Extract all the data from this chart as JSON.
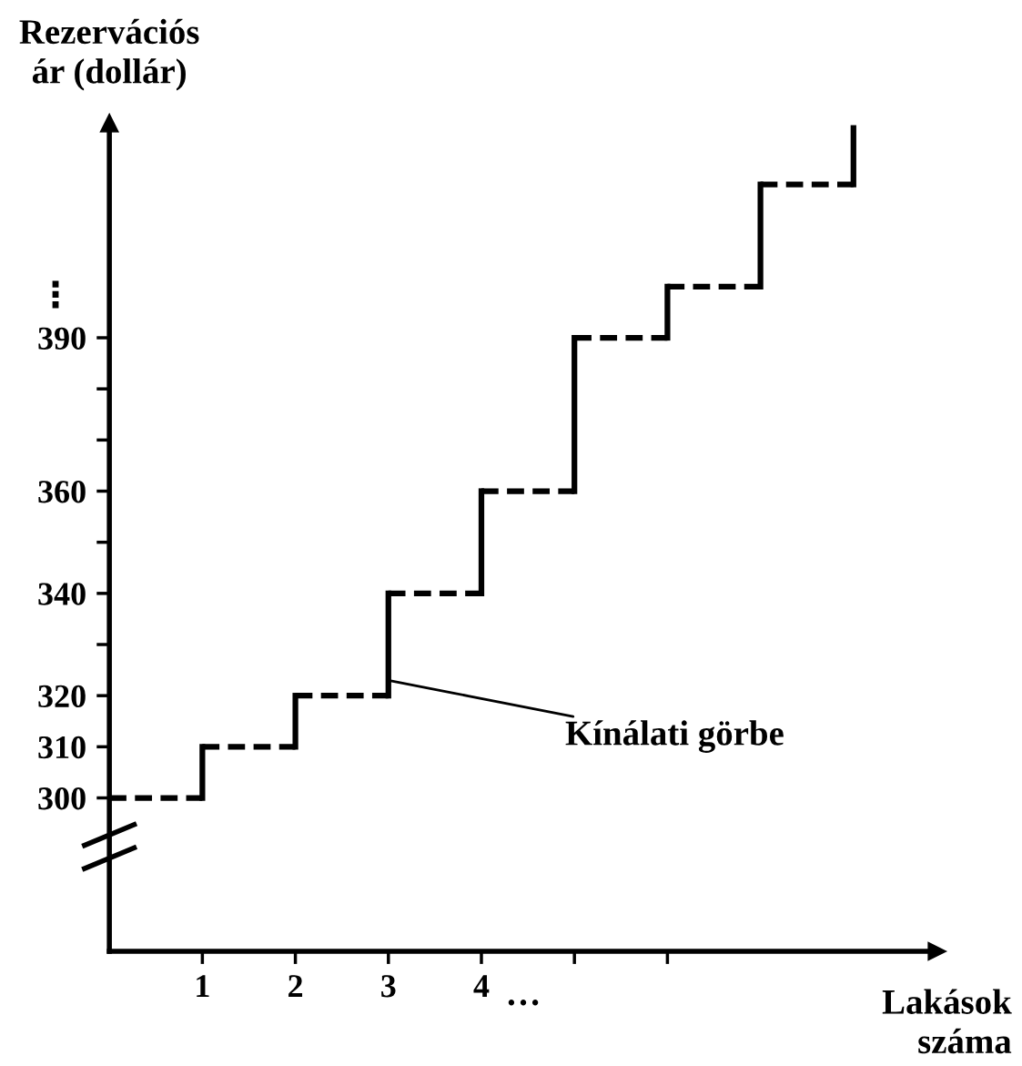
{
  "chart_data": {
    "type": "step",
    "xlabel": "Lakások\nszáma",
    "ylabel": "Rezervációs\nár (dollár)",
    "x": [
      0,
      1,
      2,
      3,
      4,
      5,
      6,
      7,
      8
    ],
    "values": [
      300,
      310,
      320,
      340,
      360,
      390,
      400,
      420,
      431
    ],
    "color": "#000000",
    "line_style": "dashed",
    "xlim": [
      0,
      8.9
    ],
    "xticks": [
      1,
      2,
      3,
      4,
      {
        "value": 5,
        "label": null
      },
      {
        "value": 6,
        "label": null
      }
    ],
    "ylim": [
      270,
      432
    ],
    "yticks": [
      300,
      310,
      320,
      {
        "value": 330,
        "label": null
      },
      340,
      {
        "value": 350,
        "label": null
      },
      360,
      {
        "value": 370,
        "label": null
      },
      {
        "value": 380,
        "label": null
      },
      390
    ],
    "annotations": [
      {
        "text": "Kínálati görbe",
        "x": 3,
        "y": 323
      },
      "…",
      "⋮"
    ]
  }
}
